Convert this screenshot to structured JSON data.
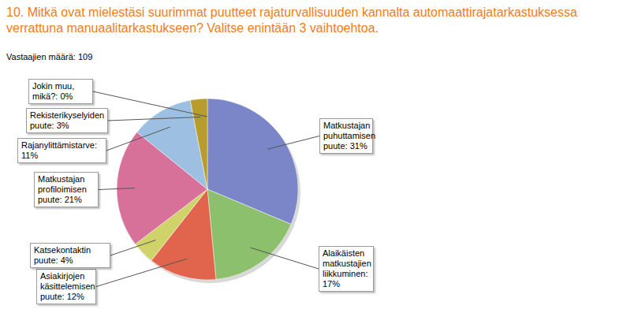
{
  "chart_data": {
    "type": "pie",
    "title": "10. Mitkä ovat mielestäsi suurimmat puutteet rajaturvallisuuden kannalta automaattirajatarkastuksessa verrattuna manuaalitarkastukseen? Valitse enintään 3 vaihtoehtoa.",
    "subtitle": "Vastaajien määrä: 109",
    "categories": [
      "Matkustajan puhuttamisen puute",
      "Alaikäisten matkustajien liikkuminen",
      "Asiakirjojen käsittelemisen puute",
      "Katsekontaktin puute",
      "Matkustajan profiloimisen puute",
      "Rajanylittämistarve",
      "Rekisterikyselyiden puute",
      "Jokin muu, mikä?"
    ],
    "values": [
      31,
      17,
      12,
      4,
      21,
      11,
      3,
      0
    ],
    "value_labels": [
      "31%",
      "17%",
      "12%",
      "4%",
      "21%",
      "11%",
      "3%",
      "0%"
    ],
    "colors": [
      "#7b86c8",
      "#8cc06c",
      "#e0654c",
      "#cfd36a",
      "#d8719a",
      "#9dc0e2",
      "#b89c2c",
      "#8a8a8a"
    ],
    "data_labels": true
  }
}
